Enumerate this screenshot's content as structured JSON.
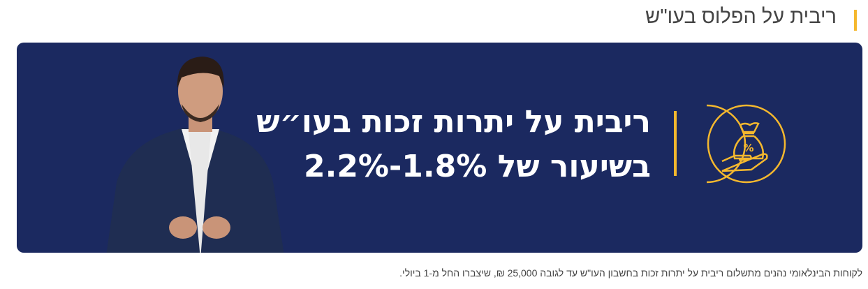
{
  "section": {
    "title": "ריבית על הפלוס בעו\"ש"
  },
  "banner": {
    "headline_line1": "ריבית על יתרות זכות בעו״ש",
    "headline_line2": "בשיעור של 1.8%-2.2%",
    "icon": "money-bag-percent-hand-icon",
    "colors": {
      "background": "#1b2960",
      "accent": "#f5b82e",
      "text": "#ffffff"
    }
  },
  "footnote": "לקוחות הבינלאומי נהנים מתשלום ריבית על יתרות זכות בחשבון העו\"ש עד לגובה 25,000 ₪, שיצברו החל מ-1 ביולי."
}
